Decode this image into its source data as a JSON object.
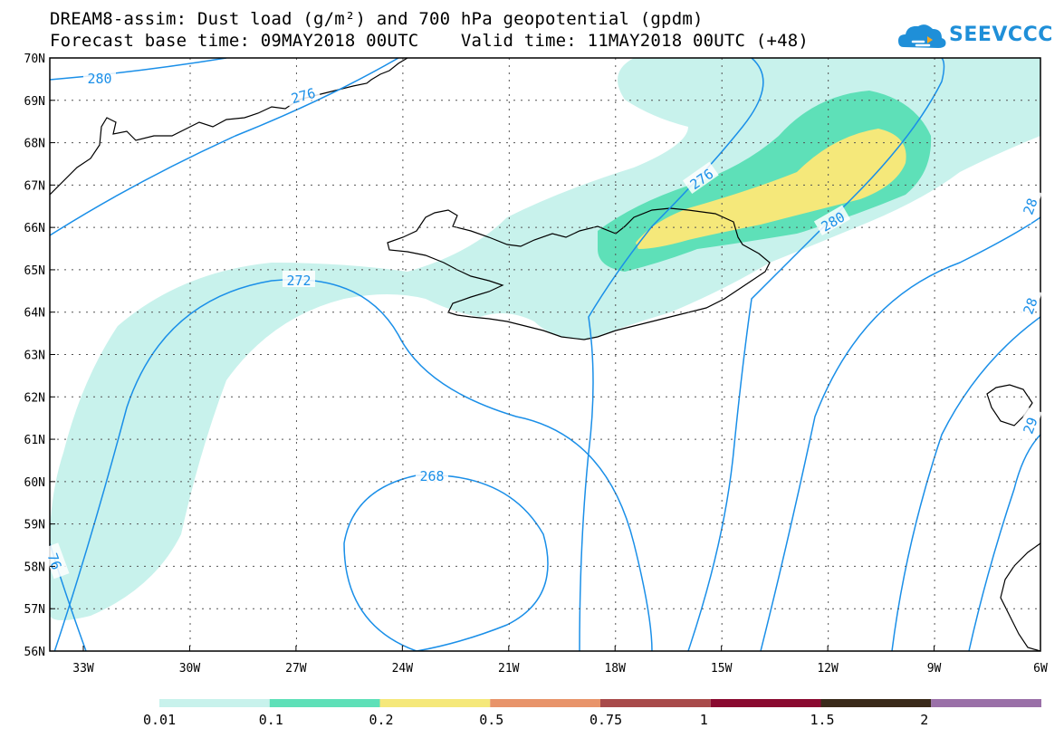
{
  "title": {
    "line1": "DREAM8-assim: Dust load (g/m²) and 700 hPa geopotential (gpdm)",
    "line2": "Forecast base time: 09MAY2018 00UTC    Valid time: 11MAY2018 00UTC (+48)"
  },
  "logo": {
    "text": "SEEVCCC",
    "icon": "cloud-icon",
    "color": "#1f8fd8"
  },
  "axes": {
    "lat_labels": [
      "70N",
      "69N",
      "68N",
      "67N",
      "66N",
      "65N",
      "64N",
      "63N",
      "62N",
      "61N",
      "60N",
      "59N",
      "58N",
      "57N",
      "56N"
    ],
    "lon_labels": [
      "33W",
      "30W",
      "27W",
      "24W",
      "21W",
      "18W",
      "15W",
      "12W",
      "9W",
      "6W"
    ]
  },
  "contour_labels": [
    "280",
    "276",
    "276",
    "272",
    "268",
    "280",
    "76",
    "28",
    "28",
    "29"
  ],
  "legend": {
    "labels": [
      "0.01",
      "0.1",
      "0.2",
      "0.5",
      "0.75",
      "1",
      "1.5",
      "2"
    ],
    "colors": [
      "#c8f2ec",
      "#5ee0b8",
      "#f5e87a",
      "#e8946a",
      "#a84a4a",
      "#8a0a30",
      "#3a2a1a",
      "#9a70a8"
    ]
  },
  "colors": {
    "contour": "#1a8fe8",
    "coast": "#000000",
    "dust_low": "#c8f2ec",
    "dust_mid": "#5ee0b8",
    "dust_high": "#f5e87a"
  }
}
